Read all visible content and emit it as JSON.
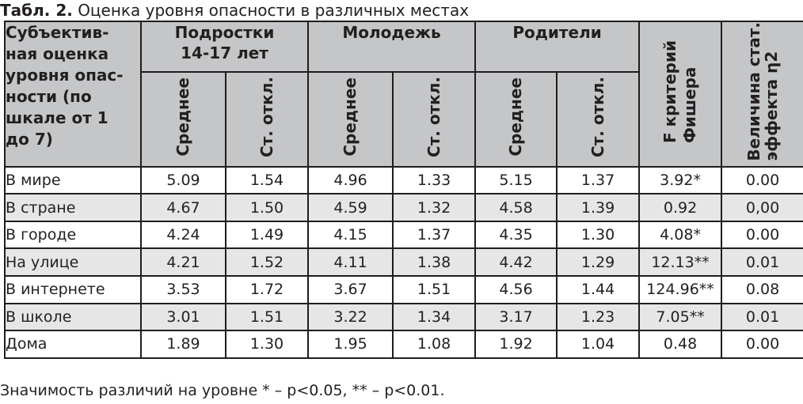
{
  "caption": {
    "label": "Табл. 2.",
    "title": "Оценка уровня опасности в различных местах"
  },
  "header": {
    "first_column": "Субъектив-\nная оценка\nуровня опас-\nности (по\nшкале от 1\nдо 7)",
    "groups": [
      "Подростки\n14-17 лет",
      "Молодежь",
      "Родители"
    ],
    "sub_columns": [
      "Среднее",
      "Ст. откл."
    ],
    "fisher": "F критерий\nФишера",
    "effect": "Величина стат.\nэффекта η2"
  },
  "rows": [
    {
      "label": "В мире",
      "values": [
        "5.09",
        "1.54",
        "4.96",
        "1.33",
        "5.15",
        "1.37",
        "3.92*",
        "0.00"
      ]
    },
    {
      "label": "В стране",
      "values": [
        "4.67",
        "1.50",
        "4.59",
        "1.32",
        "4.58",
        "1.39",
        "0.92",
        "0,00"
      ]
    },
    {
      "label": "В городе",
      "values": [
        "4.24",
        "1.49",
        "4.15",
        "1.37",
        "4.35",
        "1.30",
        "4.08*",
        "0.00"
      ]
    },
    {
      "label": "На улице",
      "values": [
        "4.21",
        "1.52",
        "4.11",
        "1.38",
        "4.42",
        "1.29",
        "12.13**",
        "0.01"
      ]
    },
    {
      "label": "В интернете",
      "values": [
        "3.53",
        "1.72",
        "3.67",
        "1.51",
        "4.56",
        "1.44",
        "124.96**",
        "0.08"
      ]
    },
    {
      "label": "В школе",
      "values": [
        "3.01",
        "1.51",
        "3.22",
        "1.34",
        "3.17",
        "1.23",
        "7.05**",
        "0.01"
      ]
    },
    {
      "label": "Дома",
      "values": [
        "1.89",
        "1.30",
        "1.95",
        "1.08",
        "1.92",
        "1.04",
        "0.48",
        "0.00"
      ]
    }
  ],
  "footnote": "Значимость различий на уровне * – p<0.05, ** – p<0.01.",
  "colors": {
    "header_bg": "#c5c6c8",
    "stripe_bg": "#e6e6e7",
    "border": "#1f1d1e",
    "text": "#231f20"
  }
}
